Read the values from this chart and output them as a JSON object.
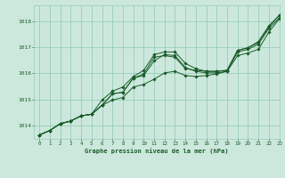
{
  "background_color": "#cce8dc",
  "plot_bg_color": "#cce8dc",
  "grid_color": "#99ccbb",
  "line_color": "#1a5c2a",
  "text_color": "#1a5c2a",
  "title": "Graphe pression niveau de la mer (hPa)",
  "xlim": [
    -0.5,
    23
  ],
  "ylim": [
    1013.5,
    1018.6
  ],
  "yticks": [
    1014,
    1015,
    1016,
    1017,
    1018
  ],
  "xticks": [
    0,
    1,
    2,
    3,
    4,
    5,
    6,
    7,
    8,
    9,
    10,
    11,
    12,
    13,
    14,
    15,
    16,
    17,
    18,
    19,
    20,
    21,
    22,
    23
  ],
  "series": [
    [
      1013.65,
      1013.82,
      1014.08,
      1014.18,
      1014.38,
      1014.44,
      1014.78,
      1015.22,
      1015.28,
      1015.82,
      1015.98,
      1016.62,
      1016.68,
      1016.62,
      1016.18,
      1016.12,
      1016.08,
      1016.08,
      1016.12,
      1016.88,
      1016.98,
      1017.18,
      1017.78,
      1018.22
    ],
    [
      1013.65,
      1013.82,
      1014.08,
      1014.18,
      1014.38,
      1014.44,
      1014.78,
      1015.22,
      1015.28,
      1015.82,
      1015.92,
      1016.48,
      1016.72,
      1016.68,
      1016.22,
      1016.08,
      1016.02,
      1016.02,
      1016.08,
      1016.82,
      1016.92,
      1017.12,
      1017.72,
      1018.12
    ],
    [
      1013.65,
      1013.82,
      1014.08,
      1014.18,
      1014.38,
      1014.44,
      1014.98,
      1015.32,
      1015.48,
      1015.88,
      1016.12,
      1016.72,
      1016.82,
      1016.82,
      1016.38,
      1016.18,
      1016.08,
      1016.08,
      1016.12,
      1016.88,
      1016.98,
      1017.22,
      1017.82,
      1018.22
    ],
    [
      1013.65,
      1013.82,
      1014.08,
      1014.18,
      1014.38,
      1014.44,
      1014.78,
      1014.98,
      1015.08,
      1015.48,
      1015.58,
      1015.78,
      1016.02,
      1016.08,
      1015.92,
      1015.88,
      1015.92,
      1015.98,
      1016.08,
      1016.68,
      1016.78,
      1016.92,
      1017.58,
      1018.08
    ]
  ]
}
